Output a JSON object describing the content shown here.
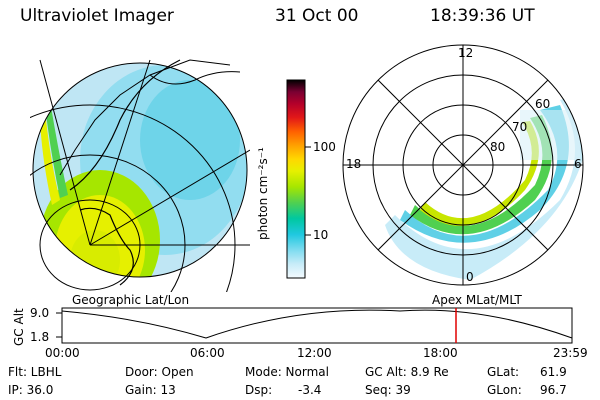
{
  "header": {
    "instrument": "Ultraviolet Imager",
    "date": "31 Oct 00",
    "time": "18:39:36 UT"
  },
  "colorbar": {
    "unit": "photon cm⁻²s⁻¹",
    "tick_high": "100",
    "tick_low": "10",
    "scale": "log",
    "colors": [
      "#000000",
      "#3a0028",
      "#7a0032",
      "#b4002a",
      "#e21818",
      "#ff6000",
      "#ffa000",
      "#ffd800",
      "#e6f000",
      "#a6e600",
      "#50d050",
      "#00c8a0",
      "#20c8e0",
      "#80dcf0",
      "#c8ecf8",
      "#f4faff"
    ]
  },
  "polar_plot": {
    "label_12": "12",
    "label_18": "18",
    "label_6": "6",
    "label_0": "0",
    "lat_60": "60",
    "lat_70": "70",
    "lat_80": "80"
  },
  "projections": {
    "left": "Geographic Lat/Lon",
    "right": "Apex MLat/MLT"
  },
  "timeline": {
    "axis_label": "GC Alt",
    "y_high": "9.0",
    "y_low": "1.8",
    "x_ticks": [
      "00:00",
      "06:00",
      "12:00",
      "18:00",
      "23:59"
    ],
    "marker_time": "18:39:36",
    "marker_color": "#e00000"
  },
  "info": {
    "flt": "Flt: LBHL",
    "ip": "IP: 36.0",
    "door": "Door: Open",
    "gain": "Gain: 13",
    "mode": "Mode: Normal",
    "dsp_label": "Dsp:",
    "dsp_value": "-3.4",
    "gcalt": "GC Alt: 8.9 Re",
    "seq": "Seq: 39",
    "glat_label": "GLat:",
    "glat_value": "61.9",
    "glon_label": "GLon:",
    "glon_value": "96.7"
  }
}
